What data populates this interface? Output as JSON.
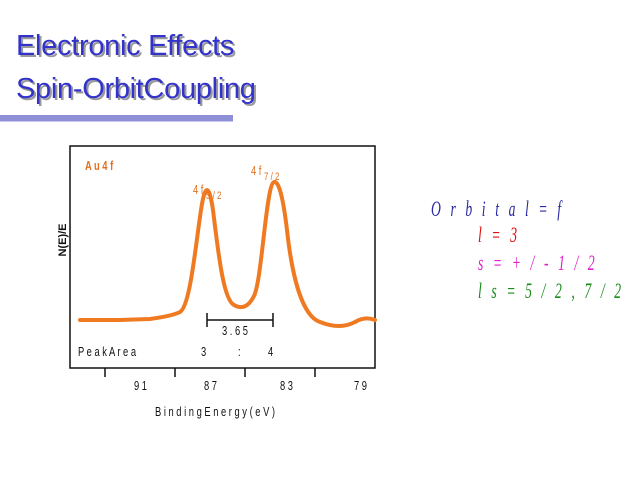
{
  "slide": {
    "title_line1": "Electronic Effects",
    "title_line2": "Spin-OrbitCoupling"
  },
  "figure": {
    "ylabel": "N(E)/E",
    "sample_label": "A u 4 f",
    "peak_label_left_main": "4 f",
    "peak_label_left_sub": "5 / 2",
    "peak_label_right_main": "4 f",
    "peak_label_right_sub": "7 / 2",
    "splitting_label": "3 . 6 5",
    "peak_area_label": "P e a k  A r e a",
    "peak_area_left": "3",
    "peak_area_sep": ":",
    "peak_area_right": "4",
    "xticks": [
      "9 1",
      "8 7",
      "8 3",
      "7 9"
    ],
    "xlabel": "B i n d i n g  E n e r g y  ( e V )",
    "colors": {
      "curve": "#f07a22",
      "axis": "#111111",
      "label": "#e07020"
    }
  },
  "orbital_notes": {
    "line1": "O r b i t a l = f",
    "line2": "l = 3",
    "line3": "s = + / - 1 / 2",
    "line4": "l s = 5 / 2 , 7 / 2",
    "colors": [
      "#2a2aa0",
      "#e01010",
      "#e020d0",
      "#1a8a1a"
    ]
  }
}
